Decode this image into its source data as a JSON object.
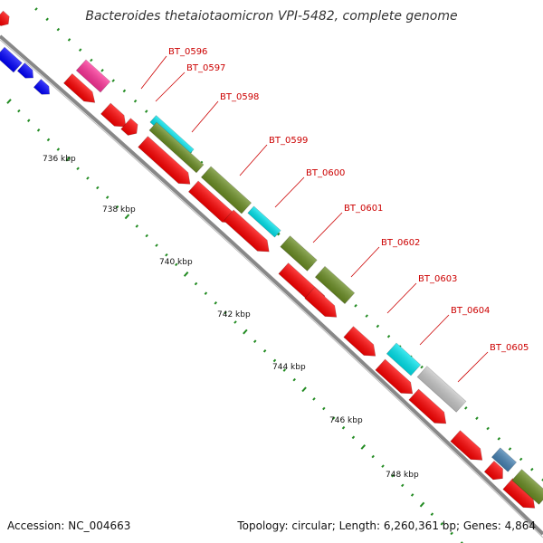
{
  "header": {
    "title": "Bacteroides thetaiotaomicron VPI-5482, complete genome"
  },
  "footer": {
    "accession": "Accession: NC_004663",
    "summary": "Topology: circular; Length: 6,260,361 bp; Genes: 4,864"
  },
  "scale_ticks": [
    "736 kbp",
    "738 kbp",
    "740 kbp",
    "742 kbp",
    "744 kbp",
    "746 kbp",
    "748 kbp"
  ],
  "gene_labels": [
    "BT_0596",
    "BT_0597",
    "BT_0598",
    "BT_0599",
    "BT_0600",
    "BT_0601",
    "BT_0602",
    "BT_0603",
    "BT_0604",
    "BT_0605"
  ],
  "colors": {
    "cds": "#ff0000",
    "cyan": "#00e5ee",
    "olive": "#6b8e23",
    "gray": "#c8c8c8",
    "pink": "#ff3399",
    "blue": "#0000ff",
    "steel": "#4682b4",
    "ticks": "#228b22",
    "backbone": "#888888",
    "label": "#cc0000"
  }
}
